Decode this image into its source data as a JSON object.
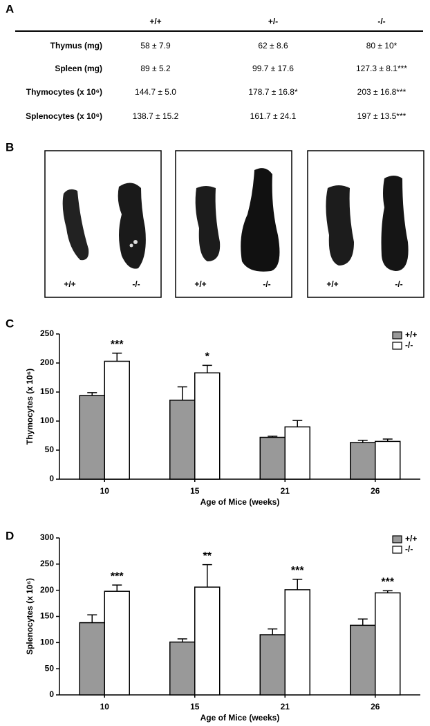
{
  "panel_labels": [
    "A",
    "B",
    "C",
    "D"
  ],
  "table": {
    "header": [
      "+/+",
      "+/-",
      "-/-"
    ],
    "rows": [
      [
        "Thymus (mg)",
        "58 ± 7.9",
        "62 ± 8.6",
        "80 ± 10*"
      ],
      [
        "Spleen (mg)",
        "89 ± 5.2",
        "99.7 ± 17.6",
        "127.3 ± 8.1***"
      ],
      [
        "Thymocytes (x 10⁶)",
        "144.7 ± 5.0",
        "178.7 ± 16.8*",
        "203 ± 16.8***"
      ],
      [
        "Splenocytes (x 10⁶)",
        "138.7 ± 15.2",
        "161.7 ± 24.1",
        "197 ± 13.5***"
      ]
    ]
  },
  "photos": [
    {
      "labels": [
        "+/+",
        "-/-"
      ]
    },
    {
      "labels": [
        "+/+",
        "-/-"
      ]
    },
    {
      "labels": [
        "+/+",
        "-/-"
      ]
    }
  ],
  "chart_data": [
    {
      "type": "bar",
      "ylabel": "Thymocytes (x 10⁶)",
      "xlabel": "Age of Mice (weeks)",
      "categories": [
        "10",
        "15",
        "21",
        "26"
      ],
      "series": [
        {
          "name": "+/+",
          "color": "#999999",
          "values": [
            144,
            136,
            72,
            63
          ],
          "errors": [
            5,
            23,
            2,
            4
          ]
        },
        {
          "name": "-/-",
          "color": "#ffffff",
          "values": [
            203,
            183,
            90,
            65
          ],
          "errors": [
            14,
            13,
            11,
            4
          ]
        }
      ],
      "annotations": [
        "***",
        "*",
        null,
        null
      ],
      "ylim": [
        0,
        250
      ],
      "yticks": [
        0,
        50,
        100,
        150,
        200,
        250
      ],
      "legend": "upper right"
    },
    {
      "type": "bar",
      "ylabel": "Splenocytes (x 10⁶)",
      "xlabel": "Age of Mice (weeks)",
      "categories": [
        "10",
        "15",
        "21",
        "26"
      ],
      "series": [
        {
          "name": "+/+",
          "color": "#999999",
          "values": [
            138,
            101,
            115,
            133
          ],
          "errors": [
            15,
            6,
            11,
            12
          ]
        },
        {
          "name": "-/-",
          "color": "#ffffff",
          "values": [
            198,
            206,
            201,
            195
          ],
          "errors": [
            12,
            43,
            20,
            4
          ]
        }
      ],
      "annotations": [
        "***",
        "**",
        "***",
        "***"
      ],
      "ylim": [
        0,
        300
      ],
      "yticks": [
        0,
        50,
        100,
        150,
        200,
        250,
        300
      ],
      "legend": "upper right"
    }
  ]
}
